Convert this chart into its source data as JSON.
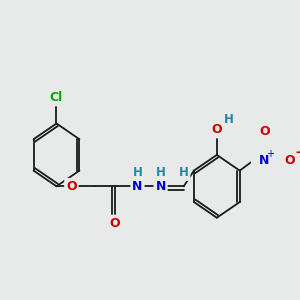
{
  "background_color": "#e8eaea",
  "bond_color": "#1a1a1a",
  "atom_colors": {
    "Cl": "#00aa00",
    "O": "#cc0000",
    "N": "#0000cc",
    "H": "#2288aa",
    "C": "#1a1a1a"
  },
  "figsize": [
    3.0,
    3.0
  ],
  "dpi": 100
}
